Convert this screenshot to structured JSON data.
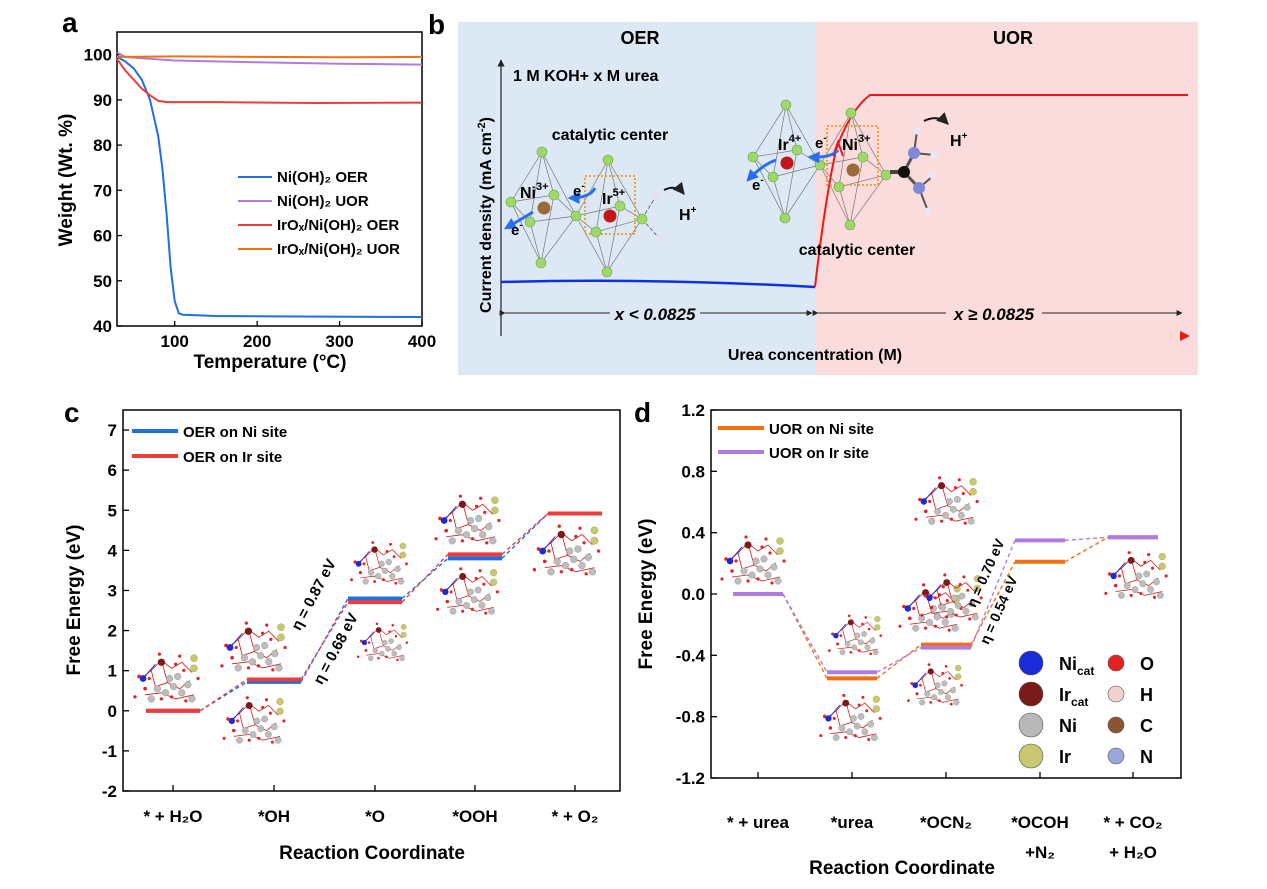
{
  "panel_labels": {
    "a": "a",
    "b": "b",
    "c": "c",
    "d": "d"
  },
  "chart_data": [
    {
      "panel": "a",
      "type": "line",
      "xlabel": "Temperature (°C)",
      "ylabel": "Weight (Wt. %)",
      "xlim": [
        30,
        400
      ],
      "ylim": [
        40,
        105
      ],
      "xticks": [
        100,
        200,
        300,
        400
      ],
      "yticks": [
        40,
        50,
        60,
        70,
        80,
        90,
        100
      ],
      "grid": false,
      "legend_position": "center-right",
      "series": [
        {
          "name": "Ni(OH)₂ OER",
          "color": "#1f6fe0",
          "x": [
            30,
            40,
            50,
            60,
            70,
            80,
            85,
            90,
            95,
            100,
            105,
            110,
            150,
            250,
            400
          ],
          "y": [
            99.5,
            98.5,
            97,
            94.5,
            90,
            82,
            75,
            65,
            53,
            45.5,
            42.8,
            42.5,
            42.2,
            42.1,
            42.0
          ]
        },
        {
          "name": "Ni(OH)₂ UOR",
          "color": "#b07be0",
          "x": [
            30,
            40,
            60,
            100,
            200,
            300,
            400
          ],
          "y": [
            100.5,
            99.5,
            99.2,
            98.7,
            98.3,
            98.0,
            97.8
          ]
        },
        {
          "name": "IrOₓ/Ni(OH)₂ OER",
          "color": "#ee3b3b",
          "x": [
            30,
            40,
            50,
            60,
            70,
            80,
            90,
            150,
            270,
            400
          ],
          "y": [
            99,
            96.5,
            94.5,
            92.5,
            91,
            89.8,
            89.5,
            89.5,
            89.3,
            89.4
          ]
        },
        {
          "name": "IrOₓ/Ni(OH)₂ UOR",
          "color": "#f07010",
          "x": [
            30,
            100,
            200,
            300,
            400
          ],
          "y": [
            99.5,
            99.6,
            99.5,
            99.4,
            99.5
          ]
        }
      ]
    },
    {
      "panel": "c",
      "type": "line",
      "xlabel": "Reaction Coordinate",
      "ylabel": "Free Energy (eV)",
      "ylim": [
        -2,
        7.5
      ],
      "yticks": [
        -2,
        -1,
        0,
        1,
        2,
        3,
        4,
        5,
        6,
        7
      ],
      "categories": [
        "* + H₂O",
        "*OH",
        "*O",
        "*OOH",
        "* + O₂"
      ],
      "legend_position": "top-left",
      "series": [
        {
          "name": "OER on Ni site",
          "color": "#1f6fe0",
          "values": [
            0,
            0.72,
            2.8,
            3.8,
            4.92
          ]
        },
        {
          "name": "OER on Ir site",
          "color": "#ee3b3b",
          "values": [
            0,
            0.78,
            2.71,
            3.9,
            4.92
          ]
        }
      ],
      "annotations": [
        {
          "text": "η = 0.87 eV",
          "color": "#1f6fe0"
        },
        {
          "text": "η = 0.68 eV",
          "color": "#ee3b3b"
        }
      ]
    },
    {
      "panel": "d",
      "type": "line",
      "xlabel": "Reaction Coordinate",
      "ylabel": "Free Energy (eV)",
      "ylim": [
        -1.2,
        1.2
      ],
      "yticks": [
        "-1.2",
        "-0.8",
        "-0.4",
        "0.0",
        "0.4",
        "0.8",
        "1.2"
      ],
      "categories": [
        [
          "* + urea"
        ],
        [
          "*urea"
        ],
        [
          "*OCN₂"
        ],
        [
          "*OCOH",
          "+N₂"
        ],
        [
          "* + CO₂",
          "+ H₂O"
        ]
      ],
      "legend_position": "top-left",
      "series": [
        {
          "name": "UOR on Ni site",
          "color": "#f07010",
          "values": [
            0,
            -0.55,
            -0.33,
            0.21,
            0.37
          ]
        },
        {
          "name": "UOR on Ir site",
          "color": "#b07be0",
          "values": [
            0,
            -0.51,
            -0.35,
            0.35,
            0.37
          ]
        }
      ],
      "annotations": [
        {
          "text": "η = 0.70 eV",
          "color": "#b07be0"
        },
        {
          "text": "η = 0.54 eV",
          "color": "#f07010"
        }
      ],
      "atom_legend": [
        {
          "name": "Ni",
          "sub": "cat",
          "color": "#1a2bd8"
        },
        {
          "name": "Ir",
          "sub": "cat",
          "color": "#7a1a1a"
        },
        {
          "name": "Ni",
          "sub": "",
          "color": "#b8b8b8"
        },
        {
          "name": "Ir",
          "sub": "",
          "color": "#c8c870"
        },
        {
          "name": "O",
          "sub": "",
          "color": "#e52222"
        },
        {
          "name": "H",
          "sub": "",
          "color": "#f0d0d0"
        },
        {
          "name": "C",
          "sub": "",
          "color": "#8a5530"
        },
        {
          "name": "N",
          "sub": "",
          "color": "#9aa6dd"
        }
      ]
    }
  ],
  "schematic_b": {
    "left_title": "OER",
    "right_title": "UOR",
    "electrolyte": "1 M KOH+ x M urea",
    "ylabel_main": "Current density (mA cm",
    "ylabel_sup": "-2",
    "ylabel_end": ")",
    "xlabel": "Urea concentration (M)",
    "left_range": "x < 0.0825",
    "right_range": "x ≥ 0.0825",
    "catalytic_center": "catalytic center",
    "ni": "Ni",
    "ni_charge": "3+",
    "ir_left_charge": "5+",
    "ir_right_charge": "4+",
    "ir": "Ir",
    "electron": "e",
    "electron_sup": "-",
    "proton": "H",
    "proton_sup": "+",
    "colors": {
      "oer_bg": "#dce8f4",
      "uor_bg": "#fbdcdc",
      "oer_line": "#1030e0",
      "uor_line": "#f01818"
    }
  }
}
